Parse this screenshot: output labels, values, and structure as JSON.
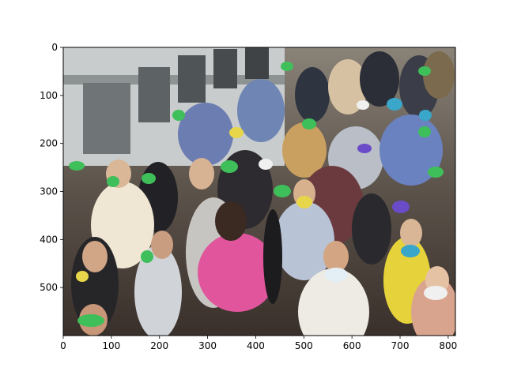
{
  "figure": {
    "image_description": "Crowded subway platform with many people wearing face masks; a subway train on the left; masks tinted green/blue/yellow/purple by a detection overlay",
    "x_ticks": [
      "0",
      "100",
      "200",
      "300",
      "400",
      "500",
      "600",
      "700",
      "800"
    ],
    "y_ticks": [
      "0",
      "100",
      "200",
      "300",
      "400",
      "500"
    ],
    "x_limits": [
      0,
      815
    ],
    "y_limits": [
      0,
      600
    ],
    "colors": {
      "mask_green": "#3fbf5a",
      "mask_blue": "#3aa6c9",
      "mask_yellow": "#e8d64a",
      "mask_purple": "#6a4cc9",
      "pink_jacket": "#e0559b",
      "train": "#bfc3c4"
    }
  }
}
